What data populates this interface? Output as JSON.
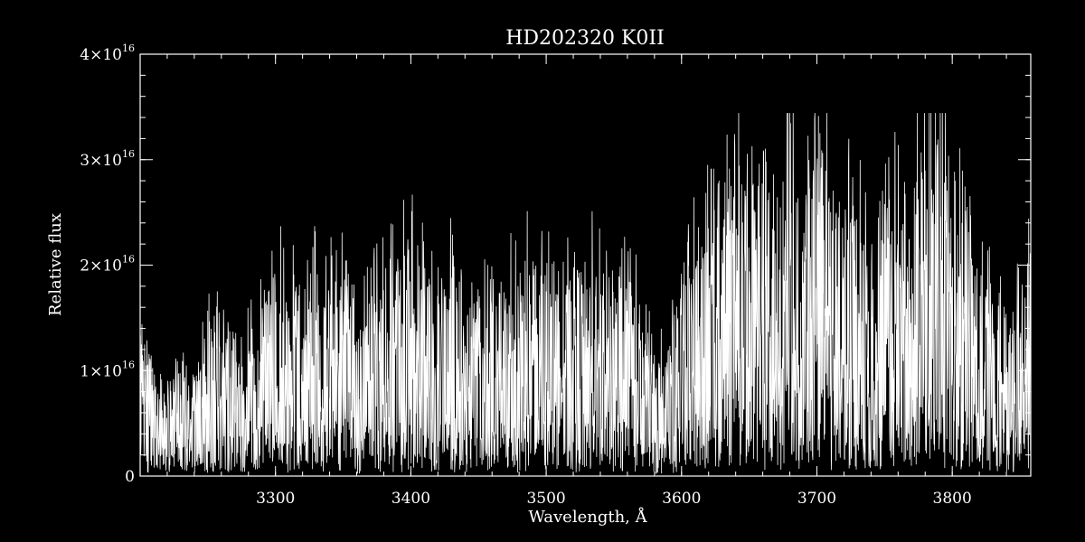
{
  "chart_data": {
    "type": "line",
    "title": "HD202320   K0II",
    "xlabel": "Wavelength, Å",
    "ylabel": "Relative flux",
    "xlim": [
      3200,
      3858
    ],
    "ylim": [
      0,
      4e+16
    ],
    "x_ticks": [
      {
        "value": 3300,
        "label": "3300"
      },
      {
        "value": 3400,
        "label": "3400"
      },
      {
        "value": 3500,
        "label": "3500"
      },
      {
        "value": 3600,
        "label": "3600"
      },
      {
        "value": 3700,
        "label": "3700"
      },
      {
        "value": 3800,
        "label": "3800"
      }
    ],
    "y_ticks": [
      {
        "value": 0,
        "label": "0",
        "exp": ""
      },
      {
        "value": 1e+16,
        "label": "1×10",
        "exp": "16"
      },
      {
        "value": 2e+16,
        "label": "2×10",
        "exp": "16"
      },
      {
        "value": 3e+16,
        "label": "3×10",
        "exp": "16"
      },
      {
        "value": 4e+16,
        "label": "4×10",
        "exp": "16"
      }
    ],
    "x_minor_step": 20,
    "y_minor_step": 2000000000000000.0,
    "grid": false,
    "colors": {
      "background": "#000000",
      "line": "#ffffff",
      "axes": "#ffffff"
    },
    "series": [
      {
        "x": [
          3200,
          3210,
          3220,
          3230,
          3240,
          3250,
          3260,
          3270,
          3280,
          3290,
          3300,
          3310,
          3320,
          3330,
          3340,
          3350,
          3355,
          3360,
          3370,
          3380,
          3390,
          3400,
          3410,
          3420,
          3430,
          3440,
          3450,
          3460,
          3470,
          3480,
          3490,
          3500,
          3510,
          3520,
          3530,
          3540,
          3550,
          3560,
          3570,
          3580,
          3590,
          3600,
          3610,
          3620,
          3630,
          3640,
          3650,
          3660,
          3670,
          3680,
          3690,
          3700,
          3710,
          3720,
          3730,
          3740,
          3750,
          3760,
          3770,
          3780,
          3790,
          3800,
          3810,
          3820,
          3830,
          3840,
          3850,
          3858
        ],
        "y": [
          1.2e+16,
          1e+16,
          8000000000000000.0,
          9000000000000000.0,
          8500000000000000.0,
          1.3e+16,
          1.4e+16,
          1.3e+16,
          1.2e+16,
          1.5e+16,
          1.8e+16,
          1.7e+16,
          1.8e+16,
          1.75e+16,
          1.7e+16,
          1.8e+16,
          1.6e+16,
          1.2e+16,
          1.6e+16,
          1.8e+16,
          1.9e+16,
          2e+16,
          1.8e+16,
          1.7e+16,
          1.9e+16,
          1.4e+16,
          1.6e+16,
          1.5e+16,
          1.7e+16,
          1.8e+16,
          1.9e+16,
          1.8e+16,
          1.5e+16,
          1.8e+16,
          1.9e+16,
          2e+16,
          1.9e+16,
          1.7e+16,
          1.5e+16,
          1e+16,
          1.2e+16,
          1.6e+16,
          2e+16,
          2.2e+16,
          2.5e+16,
          2.7e+16,
          2.8e+16,
          2.9e+16,
          2.8e+16,
          2.7e+16,
          2.6e+16,
          2.9e+16,
          2.7e+16,
          2.5e+16,
          2.4e+16,
          2e+16,
          2.3e+16,
          2.6e+16,
          2.8e+16,
          3e+16,
          2.9e+16,
          2.8e+16,
          2.6e+16,
          2e+16,
          1.5e+16,
          1.4e+16,
          1.6e+16,
          2e+16
        ]
      }
    ]
  }
}
